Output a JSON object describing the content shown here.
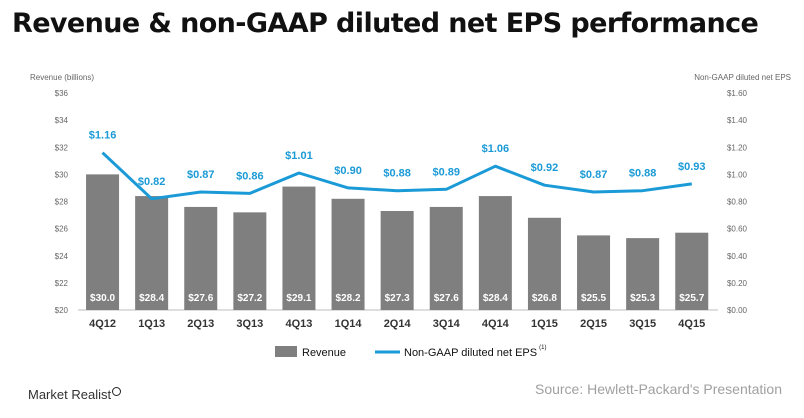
{
  "title": "Revenue & non-GAAP diluted net EPS performance",
  "source": "Source: Hewlett-Packard's Presentation",
  "brand": "Market Realist",
  "colors": {
    "bar": "#7f7f7f",
    "line": "#1a9ad6",
    "bar_label": "#ffffff",
    "axis_text": "#666666"
  },
  "chart_data": {
    "type": "bar",
    "categories": [
      "4Q12",
      "1Q13",
      "2Q13",
      "3Q13",
      "4Q13",
      "1Q14",
      "2Q14",
      "3Q14",
      "4Q14",
      "1Q15",
      "2Q15",
      "3Q15",
      "4Q15"
    ],
    "series": [
      {
        "name": "Revenue",
        "type": "bar",
        "axis": "left",
        "values": [
          30.0,
          28.4,
          27.6,
          27.2,
          29.1,
          28.2,
          27.3,
          27.6,
          28.4,
          26.8,
          25.5,
          25.3,
          25.7
        ],
        "labels": [
          "$30.0",
          "$28.4",
          "$27.6",
          "$27.2",
          "$29.1",
          "$28.2",
          "$27.3",
          "$27.6",
          "$28.4",
          "$26.8",
          "$25.5",
          "$25.3",
          "$25.7"
        ]
      },
      {
        "name": "Non-GAAP diluted net EPS",
        "superscript": "(1)",
        "type": "line",
        "axis": "right",
        "values": [
          1.16,
          0.82,
          0.87,
          0.86,
          1.01,
          0.9,
          0.88,
          0.89,
          1.06,
          0.92,
          0.87,
          0.88,
          0.93
        ],
        "labels": [
          "$1.16",
          "$0.82",
          "$0.87",
          "$0.86",
          "$1.01",
          "$0.90",
          "$0.88",
          "$0.89",
          "$1.06",
          "$0.92",
          "$0.87",
          "$0.88",
          "$0.93"
        ]
      }
    ],
    "ylabel_left": "Revenue (billions)",
    "ylabel_right": "Non-GAAP diluted net EPS",
    "ylim_left": [
      20,
      36
    ],
    "ylim_right": [
      0,
      1.6
    ],
    "yticks_left": [
      "$20",
      "$22",
      "$24",
      "$26",
      "$28",
      "$30",
      "$32",
      "$34",
      "$36"
    ],
    "yticks_right": [
      "$0.00",
      "$0.20",
      "$0.40",
      "$0.60",
      "$0.80",
      "$1.00",
      "$1.20",
      "$1.40",
      "$1.60"
    ],
    "grid": false,
    "legend_position": "bottom"
  }
}
